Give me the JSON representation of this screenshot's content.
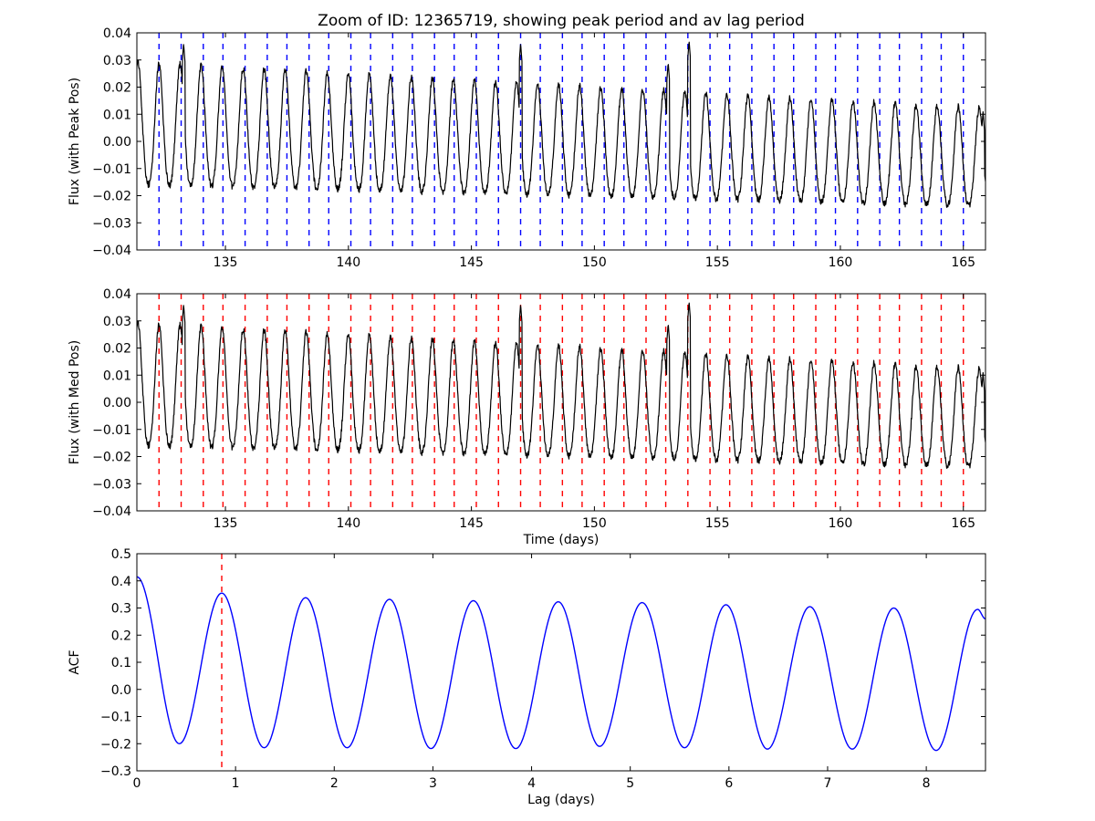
{
  "figure": {
    "title": "Zoom of ID: 12365719, showing peak period and av lag period"
  },
  "chart_data": [
    {
      "id": "peak",
      "type": "line",
      "title": "Zoom of ID: 12365719, showing peak period and av lag period",
      "xlabel": "",
      "ylabel": "Flux (with Peak Pos)",
      "xlim": [
        131.4,
        165.9
      ],
      "ylim": [
        -0.04,
        0.04
      ],
      "xticks": [
        135,
        140,
        145,
        150,
        155,
        160,
        165
      ],
      "yticks": [
        -0.04,
        -0.03,
        -0.02,
        -0.01,
        0.0,
        0.01,
        0.02,
        0.03,
        0.04
      ],
      "ytick_labels": [
        "−0.04",
        "−0.03",
        "−0.02",
        "−0.01",
        "0.00",
        "0.01",
        "0.02",
        "0.03",
        "0.04"
      ],
      "grid": false,
      "series": [
        {
          "color": "#000000",
          "signal": {
            "period_days": 0.855,
            "peak_phase_day": 132.3,
            "amplitude_start": 0.0225,
            "amplitude_end": 0.018,
            "offset_start": 0.004,
            "offset_end": -0.008,
            "noise": 0.0012,
            "spikes": [
              {
                "x": 133.3,
                "y": 0.036
              },
              {
                "x": 147.0,
                "y": 0.036
              },
              {
                "x": 153.0,
                "y": 0.029
              },
              {
                "x": 153.85,
                "y": 0.037
              },
              {
                "x": 165.8,
                "y": 0.011
              }
            ]
          }
        }
      ],
      "vlines": {
        "color": "#0000ff",
        "style": "dashed",
        "x": [
          132.3,
          133.2,
          134.1,
          134.9,
          135.8,
          136.7,
          137.5,
          138.4,
          139.2,
          140.1,
          140.9,
          141.8,
          142.6,
          143.5,
          144.3,
          145.2,
          146.1,
          147.0,
          147.8,
          148.7,
          149.5,
          150.4,
          151.2,
          152.1,
          152.9,
          153.8,
          154.7,
          155.5,
          156.4,
          157.3,
          158.1,
          159.0,
          159.8,
          160.7,
          161.6,
          162.4,
          163.3,
          164.1,
          165.0
        ]
      }
    },
    {
      "id": "median",
      "type": "line",
      "xlabel": "Time (days)",
      "ylabel": "Flux (with Med Pos)",
      "xlim": [
        131.4,
        165.9
      ],
      "ylim": [
        -0.04,
        0.04
      ],
      "xticks": [
        135,
        140,
        145,
        150,
        155,
        160,
        165
      ],
      "yticks": [
        -0.04,
        -0.03,
        -0.02,
        -0.01,
        0.0,
        0.01,
        0.02,
        0.03,
        0.04
      ],
      "ytick_labels": [
        "−0.04",
        "−0.03",
        "−0.02",
        "−0.01",
        "0.00",
        "0.01",
        "0.02",
        "0.03",
        "0.04"
      ],
      "grid": false,
      "series": [
        {
          "color": "#000000",
          "signal": "same-as-peak"
        }
      ],
      "vlines": {
        "color": "#ff0000",
        "style": "dashed",
        "x": [
          132.3,
          133.2,
          134.1,
          134.9,
          135.8,
          136.7,
          137.5,
          138.4,
          139.2,
          140.1,
          140.9,
          141.8,
          142.6,
          143.5,
          144.3,
          145.2,
          146.1,
          147.0,
          147.8,
          148.7,
          149.5,
          150.4,
          151.2,
          152.1,
          152.9,
          153.8,
          154.7,
          155.5,
          156.4,
          157.3,
          158.1,
          159.0,
          159.8,
          160.7,
          161.6,
          162.4,
          163.3,
          164.1,
          165.0
        ]
      }
    },
    {
      "id": "acf",
      "type": "line",
      "xlabel": "Lag (days)",
      "ylabel": "ACF",
      "xlim": [
        0,
        8.6
      ],
      "ylim": [
        -0.3,
        0.5
      ],
      "xticks": [
        0,
        1,
        2,
        3,
        4,
        5,
        6,
        7,
        8
      ],
      "yticks": [
        -0.3,
        -0.2,
        -0.1,
        0.0,
        0.1,
        0.2,
        0.3,
        0.4,
        0.5
      ],
      "ytick_labels": [
        "−0.3",
        "−0.2",
        "−0.1",
        "0.0",
        "0.1",
        "0.2",
        "0.3",
        "0.4",
        "0.5"
      ],
      "grid": false,
      "series": [
        {
          "color": "#0000ff",
          "x": [
            0.0,
            0.43,
            0.86,
            1.29,
            1.71,
            2.13,
            2.56,
            2.98,
            3.41,
            3.84,
            4.27,
            4.69,
            5.12,
            5.55,
            5.97,
            6.39,
            6.82,
            7.25,
            7.67,
            8.1,
            8.52,
            8.6
          ],
          "y": [
            0.415,
            -0.2,
            0.355,
            -0.215,
            0.338,
            -0.215,
            0.332,
            -0.218,
            0.327,
            -0.218,
            0.323,
            -0.21,
            0.32,
            -0.215,
            0.312,
            -0.22,
            0.305,
            -0.22,
            0.3,
            -0.225,
            0.295,
            0.26
          ]
        }
      ],
      "vlines": {
        "color": "#ff0000",
        "style": "dashed",
        "x": [
          0.86
        ]
      }
    }
  ]
}
